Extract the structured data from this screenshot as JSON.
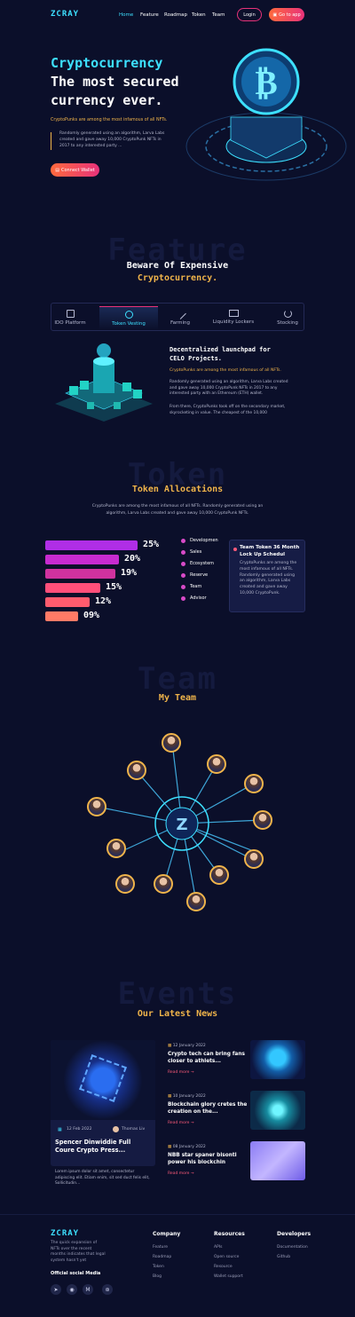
{
  "brand": {
    "logo": "ZCRAY"
  },
  "nav": {
    "items": [
      "Home",
      "Feature",
      "Roadmap",
      "Token",
      "Team"
    ],
    "login": "Login",
    "goto_app": "Go to app"
  },
  "hero": {
    "title_line1": "Cryptocurrency",
    "title_line2": "The most secured",
    "title_line3": "currency ever.",
    "tagline": "CryptoPunks are among the most infamous of all NFTs.",
    "desc": "Randomly generated using an algorithm, Larva Labs created and gave away 10,000 CryptoPunk NFTs in  2017 to any interested party ...",
    "cta": "Connect Wallet"
  },
  "feature": {
    "ghost": "Feature",
    "title_line1": "Beware Of Expensive",
    "title_line2": "Cryptocurrency.",
    "tabs": [
      "IDO Platform",
      "Token Vesting",
      "Farming",
      "Liquidity Lockers",
      "Stocking"
    ],
    "heading_line1": "Decentralized launchpad for",
    "heading_line2": "CELO Projects.",
    "tagline": "CryptoPunks are among the most infamous of all NFTs.",
    "p1": "Randomly generated using an algorithm, Larva Labs created and gave away 10,000 CryptoPunk NFTs in 2017 to any interested party with an Ethereum (ETH) wallet.",
    "p2": "From there, CryptoPunks took off on the secondary market, skyrocketing in value. The cheapest of the 10,000"
  },
  "token": {
    "ghost": "Token",
    "title": "Token Allocations",
    "desc_line1": "CryptoPunks are among the most infamous of all NFTs. Randomly generated using an",
    "desc_line2": "algorithm, Larva Labs created and gave away 10,000 CryptoPunk NFTs.",
    "percents": [
      "25%",
      "20%",
      "19%",
      "15%",
      "12%",
      "09%"
    ],
    "bar_fractions": [
      1.0,
      0.8,
      0.76,
      0.6,
      0.48,
      0.36
    ],
    "legend": [
      "Developmen",
      "Sales",
      "Ecosystem",
      "Reserve",
      "Team",
      "Advisor"
    ],
    "card_title_line1": "Team Token 36 Month",
    "card_title_line2": "Lock Up Schedul",
    "card_body": "CryptoPunks are among the most infamous of all NFTs. Randomly generated using an algorithm, Larva Labs created and gave away 10,000 CryptoPunk."
  },
  "team": {
    "ghost": "Team",
    "title": "My Team"
  },
  "events": {
    "ghost": "Events",
    "title": "Our Latest News",
    "featured": {
      "date": "12 Feb 2022",
      "author": "Thomas Liv",
      "title_line1": "Spencer Dinwiddie Full",
      "title_line2": "Coure Crypto Press...",
      "body": "Lorem ipsum dolor sit amet, consectetur adipiscing elit. Etiam enim, sit sed duct felis elit, Sollicitudin..."
    },
    "items": [
      {
        "date": "12 January 2022",
        "title_line1": "Crypto tech can bring fans",
        "title_line2": "closer to athlets...",
        "read": "Read more"
      },
      {
        "date": "10 January 2022",
        "title_line1": "Blockchain glory cretes the",
        "title_line2": "creation on the...",
        "read": "Read more"
      },
      {
        "date": "08 January 2022",
        "title_line1": "NBB star spaner bisonti",
        "title_line2": "power his blockchin",
        "read": "Read more"
      }
    ]
  },
  "footer": {
    "logo": "ZCRAY",
    "about": "The quick expansion of NFTs over the recent months indicates that legal system hasn't yet",
    "social_title": "Official social Media",
    "cols": [
      {
        "title": "Company",
        "links": [
          "Feature",
          "Roadmap",
          "Token",
          "Blog"
        ]
      },
      {
        "title": "Resources",
        "links": [
          "APIs",
          "Open source",
          "Resource",
          "Wallet support"
        ]
      },
      {
        "title": "Developers",
        "links": [
          "Documentation",
          "Github"
        ]
      }
    ]
  },
  "colors": {
    "accent": "#f0b44a",
    "cyan": "#3de0ff",
    "pink": "#e8327a",
    "bg": "#0b0f2a"
  }
}
